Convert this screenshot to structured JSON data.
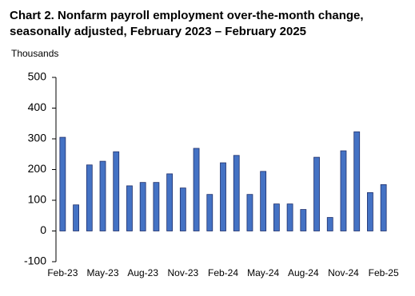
{
  "chart_data": {
    "type": "bar",
    "title": [
      "Chart 2. Nonfarm payroll employment over-the-month change,",
      "seasonally adjusted, February 2023 – February 2025"
    ],
    "y_label": "Thousands",
    "categories": [
      "Feb-23",
      null,
      null,
      "May-23",
      null,
      null,
      "Aug-23",
      null,
      null,
      "Nov-23",
      null,
      null,
      "Feb-24",
      null,
      null,
      "May-24",
      null,
      null,
      "Aug-24",
      null,
      null,
      "Nov-24",
      null,
      null,
      "Feb-25"
    ],
    "values": [
      305,
      85,
      215,
      227,
      258,
      147,
      158,
      158,
      186,
      140,
      269,
      119,
      222,
      246,
      119,
      194,
      88,
      88,
      70,
      240,
      44,
      261,
      323,
      125,
      151
    ],
    "color": "#4472c4",
    "ylim": [
      -100,
      500
    ],
    "yticks": [
      -100,
      0,
      100,
      200,
      300,
      400,
      500
    ],
    "grid": false
  }
}
